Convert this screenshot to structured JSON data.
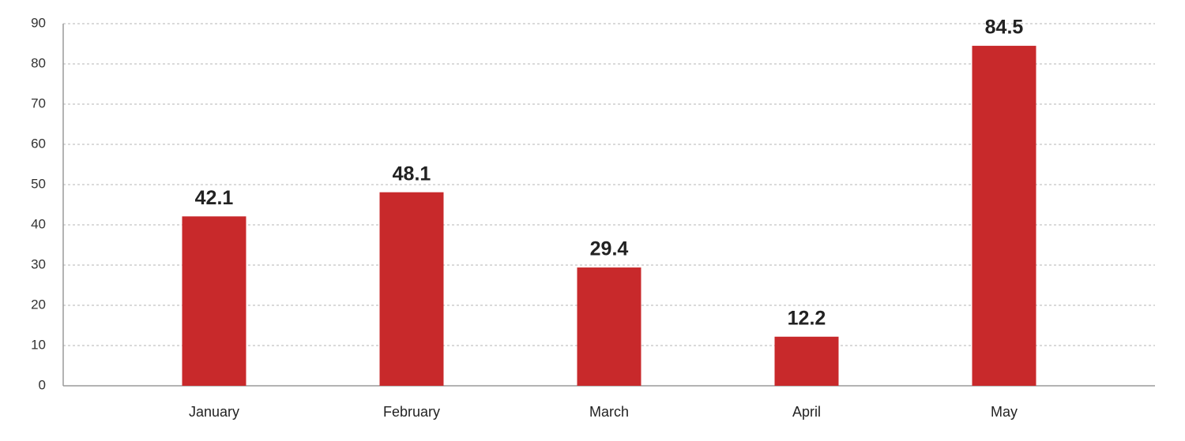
{
  "chart_data": {
    "type": "bar",
    "categories": [
      "January",
      "February",
      "March",
      "April",
      "May"
    ],
    "values": [
      42.1,
      48.1,
      29.4,
      12.2,
      84.5
    ],
    "color": "#c8292b",
    "ylim": [
      0,
      90
    ],
    "yticks": [
      0,
      10,
      20,
      30,
      40,
      50,
      60,
      70,
      80,
      90
    ],
    "grid": true
  }
}
